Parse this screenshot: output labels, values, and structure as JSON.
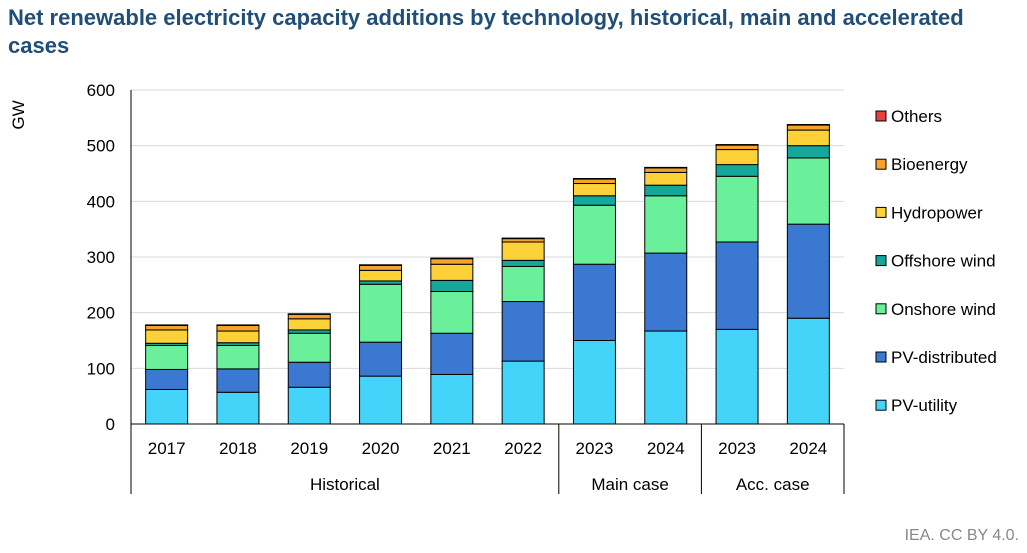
{
  "header": {
    "title": "Net renewable electricity capacity additions by technology, historical, main and accelerated cases",
    "credit": "IEA. CC BY 4.0."
  },
  "chart_data": {
    "type": "bar",
    "stacked": true,
    "title": "Net renewable electricity capacity additions by technology, historical, main and accelerated cases",
    "ylabel": "GW",
    "xlabel": "",
    "ylim": [
      0,
      600
    ],
    "yticks": [
      0,
      100,
      200,
      300,
      400,
      500,
      600
    ],
    "grid": true,
    "legend_position": "right",
    "categories": [
      "2017",
      "2018",
      "2019",
      "2020",
      "2021",
      "2022",
      "2023",
      "2024",
      "2023",
      "2024"
    ],
    "groups": [
      {
        "label": "Historical",
        "span": 6
      },
      {
        "label": "Main case",
        "span": 2
      },
      {
        "label": "Acc. case",
        "span": 2
      }
    ],
    "series": [
      {
        "name": "PV-utility",
        "color": "#44d3f9",
        "values": [
          62,
          57,
          66,
          86,
          89,
          113,
          150,
          167,
          170,
          190
        ]
      },
      {
        "name": "PV-distributed",
        "color": "#3a78d1",
        "values": [
          36,
          42,
          45,
          61,
          74,
          107,
          137,
          140,
          157,
          169
        ]
      },
      {
        "name": "Onshore wind",
        "color": "#6af09a",
        "values": [
          43,
          42,
          52,
          104,
          75,
          63,
          106,
          103,
          118,
          119
        ]
      },
      {
        "name": "Offshore wind",
        "color": "#14a89b",
        "values": [
          4,
          5,
          6,
          6,
          20,
          11,
          17,
          19,
          21,
          22
        ]
      },
      {
        "name": "Hydropower",
        "color": "#fdd238",
        "values": [
          24,
          21,
          20,
          19,
          29,
          33,
          22,
          23,
          27,
          28
        ]
      },
      {
        "name": "Bioenergy",
        "color": "#f6a32b",
        "values": [
          8,
          10,
          8,
          9,
          10,
          6,
          8,
          8,
          8,
          9
        ]
      },
      {
        "name": "Others",
        "color": "#e8403a",
        "values": [
          1,
          1,
          1,
          1,
          1,
          1,
          1,
          1,
          1,
          1
        ]
      }
    ]
  }
}
